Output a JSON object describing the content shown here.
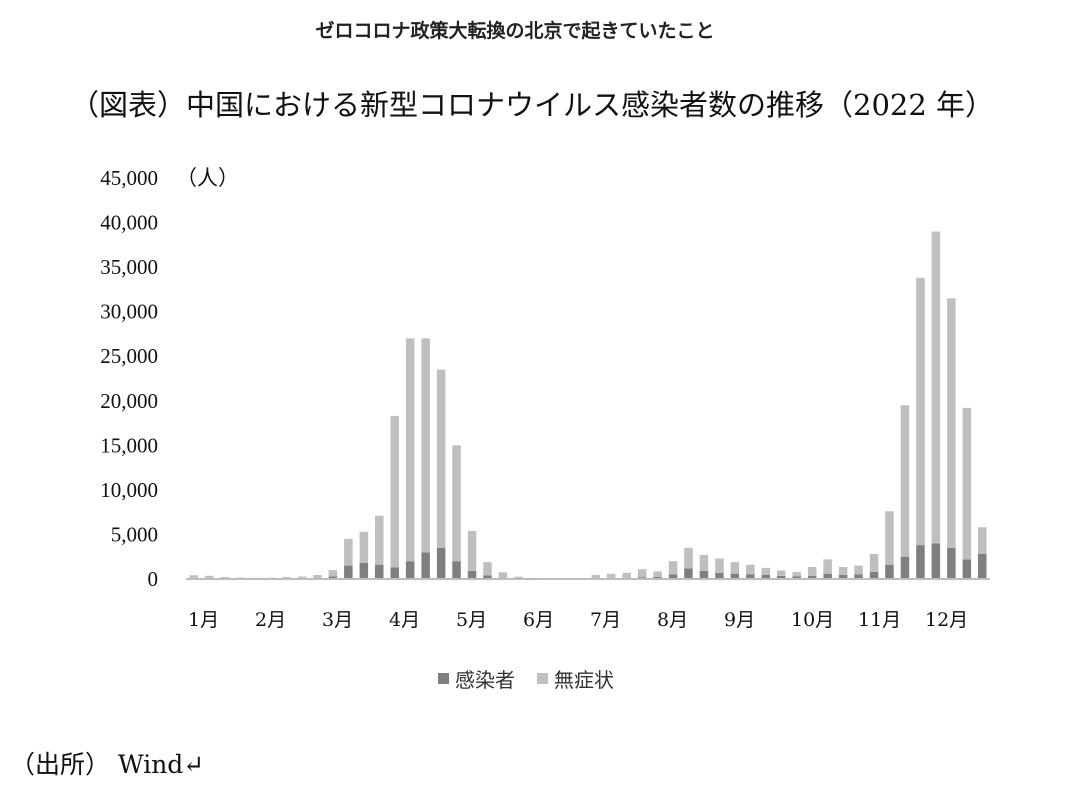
{
  "headline": "ゼロコロナ政策大転換の北京で起きていたこと",
  "figure_title": "（図表）中国における新型コロナウイルス感染者数の推移（2022 年）",
  "source_note": "（出所） Wind↵",
  "colors": {
    "infected": "#7f7f7f",
    "asymptomatic": "#bfbfbf",
    "baseline": "#bdbdbd"
  },
  "chart_data": {
    "type": "bar",
    "stacked": true,
    "title": "",
    "xlabel": "",
    "ylabel": "（人）",
    "ylim": [
      0,
      45000
    ],
    "yticks": [
      "0",
      "5,000",
      "10,000",
      "15,000",
      "20,000",
      "25,000",
      "30,000",
      "35,000",
      "40,000",
      "45,000"
    ],
    "x_tick_labels": [
      "1月",
      "2月",
      "3月",
      "4月",
      "5月",
      "6月",
      "7月",
      "8月",
      "9月",
      "10月",
      "11月",
      "12月"
    ],
    "x_resolution": "daily (approximate weekly samples shown)",
    "legend": {
      "position": "bottom",
      "entries": [
        "感染者",
        "無症状"
      ]
    },
    "grid": false,
    "categories": [
      "1/1",
      "1/8",
      "1/15",
      "1/22",
      "1/29",
      "2/5",
      "2/12",
      "2/19",
      "2/26",
      "3/5",
      "3/12",
      "3/19",
      "3/26",
      "4/2",
      "4/9",
      "4/16",
      "4/23",
      "4/30",
      "5/7",
      "5/14",
      "5/21",
      "5/28",
      "6/4",
      "6/11",
      "6/18",
      "6/25",
      "7/2",
      "7/9",
      "7/16",
      "7/23",
      "7/30",
      "8/6",
      "8/13",
      "8/20",
      "8/27",
      "9/3",
      "9/10",
      "9/17",
      "9/24",
      "10/1",
      "10/8",
      "10/15",
      "10/22",
      "10/29",
      "11/5",
      "11/12",
      "11/19",
      "11/26",
      "12/3",
      "12/10",
      "12/17",
      "12/24"
    ],
    "series": [
      {
        "name": "感染者",
        "values": [
          120,
          110,
          80,
          60,
          60,
          50,
          70,
          80,
          100,
          300,
          1500,
          1800,
          1600,
          1300,
          2000,
          3000,
          3500,
          2000,
          900,
          400,
          150,
          60,
          40,
          30,
          30,
          20,
          60,
          80,
          100,
          200,
          250,
          500,
          1200,
          900,
          700,
          600,
          500,
          450,
          350,
          300,
          350,
          600,
          450,
          500,
          800,
          1600,
          2500,
          3800,
          4000,
          3500,
          2200,
          2800
        ]
      },
      {
        "name": "無症状",
        "values": [
          300,
          250,
          150,
          100,
          80,
          100,
          150,
          200,
          350,
          700,
          3000,
          3500,
          5500,
          17000,
          25000,
          24000,
          20000,
          13000,
          4500,
          1500,
          600,
          200,
          80,
          80,
          60,
          60,
          400,
          500,
          600,
          900,
          600,
          1500,
          2300,
          1800,
          1600,
          1300,
          1100,
          800,
          600,
          500,
          1000,
          1600,
          900,
          1000,
          2000,
          6000,
          17000,
          30000,
          35000,
          28000,
          17000,
          3000
        ]
      }
    ]
  },
  "legend": {
    "infected": "感染者",
    "asymptomatic": "無症状"
  }
}
